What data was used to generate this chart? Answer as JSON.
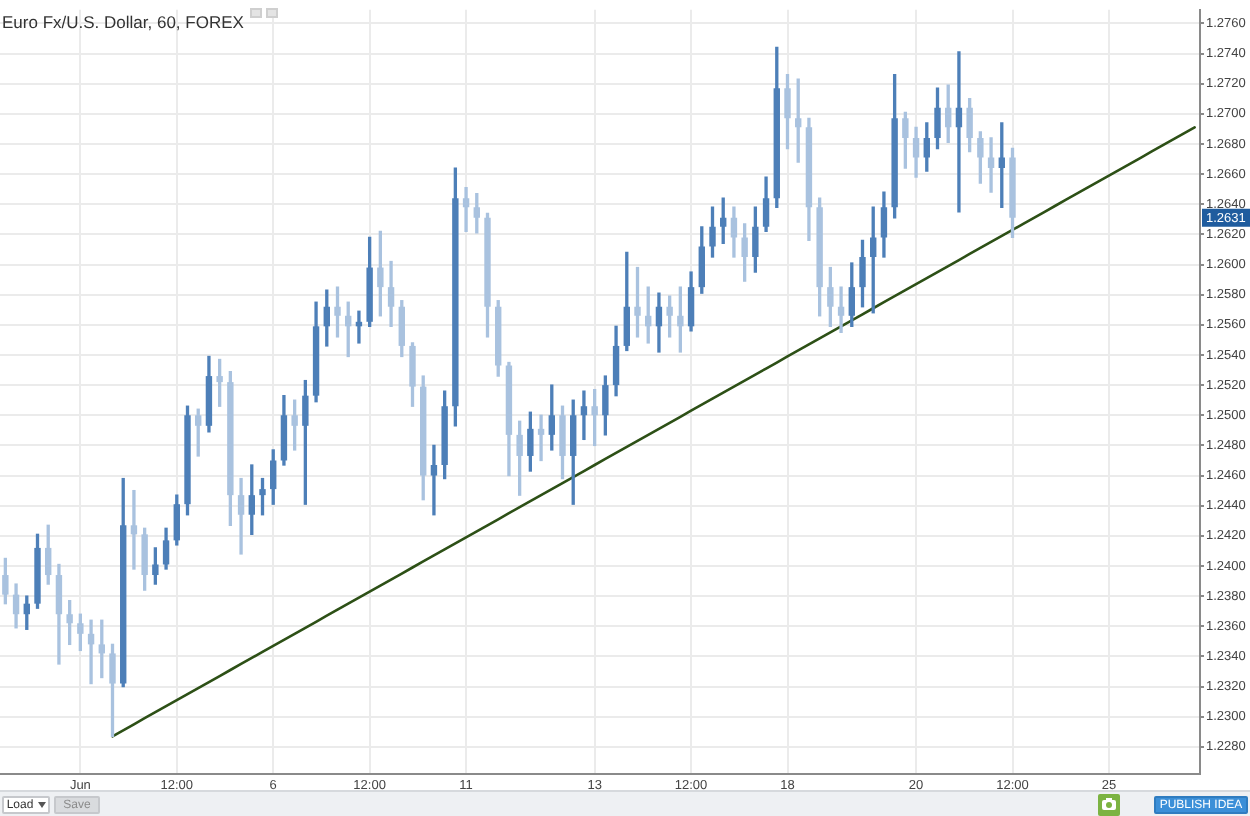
{
  "chart_data": {
    "type": "candlestick",
    "title": "Euro Fx/U.S. Dollar, 60, FOREX",
    "categories": [
      null,
      null,
      null,
      null,
      null,
      null,
      null,
      "Jun",
      null,
      null,
      null,
      null,
      null,
      null,
      null,
      null,
      "12:00",
      null,
      null,
      null,
      null,
      null,
      null,
      null,
      null,
      "6",
      null,
      null,
      null,
      null,
      null,
      null,
      null,
      null,
      "12:00",
      null,
      null,
      null,
      null,
      null,
      null,
      null,
      null,
      "11",
      null,
      null,
      null,
      null,
      null,
      null,
      null,
      null,
      null,
      null,
      null,
      "13",
      null,
      null,
      null,
      null,
      null,
      null,
      null,
      null,
      "12:00",
      null,
      null,
      null,
      null,
      null,
      null,
      null,
      null,
      "18",
      null,
      null,
      null,
      null,
      null,
      null,
      null,
      null,
      null,
      null,
      null,
      "20",
      null,
      null,
      null,
      null,
      null,
      null,
      null,
      null,
      "12:00",
      null,
      null,
      null,
      null,
      null,
      null,
      null,
      null,
      "25",
      null,
      null,
      null,
      null,
      null,
      null,
      null,
      null
    ],
    "ohlc": [
      [
        1.2394,
        1.2405,
        1.2375,
        1.2381
      ],
      [
        1.2381,
        1.2388,
        1.2359,
        1.2368
      ],
      [
        1.2368,
        1.238,
        1.2358,
        1.2375
      ],
      [
        1.2375,
        1.2421,
        1.2372,
        1.2412
      ],
      [
        1.2412,
        1.2427,
        1.2388,
        1.2394
      ],
      [
        1.2394,
        1.2401,
        1.2335,
        1.2368
      ],
      [
        1.2368,
        1.2377,
        1.2348,
        1.2362
      ],
      [
        1.2362,
        1.2368,
        1.2344,
        1.2355
      ],
      [
        1.2355,
        1.2364,
        1.2322,
        1.2348
      ],
      [
        1.2348,
        1.2364,
        1.2326,
        1.2342
      ],
      [
        1.2342,
        1.2348,
        1.2287,
        1.2322
      ],
      [
        1.2322,
        1.2458,
        1.232,
        1.2427
      ],
      [
        1.2427,
        1.245,
        1.2398,
        1.2421
      ],
      [
        1.2421,
        1.2425,
        1.2384,
        1.2394
      ],
      [
        1.2394,
        1.2412,
        1.2388,
        1.2401
      ],
      [
        1.2401,
        1.2425,
        1.2398,
        1.2417
      ],
      [
        1.2417,
        1.2447,
        1.2414,
        1.2441
      ],
      [
        1.2441,
        1.2506,
        1.2434,
        1.25
      ],
      [
        1.25,
        1.2504,
        1.2473,
        1.2493
      ],
      [
        1.2493,
        1.2539,
        1.2489,
        1.2526
      ],
      [
        1.2526,
        1.2537,
        1.2506,
        1.2522
      ],
      [
        1.2522,
        1.2529,
        1.2427,
        1.2447
      ],
      [
        1.2447,
        1.2458,
        1.2408,
        1.2434
      ],
      [
        1.2434,
        1.2467,
        1.2421,
        1.2447
      ],
      [
        1.2447,
        1.2458,
        1.2434,
        1.2451
      ],
      [
        1.2451,
        1.2477,
        1.2441,
        1.247
      ],
      [
        1.247,
        1.2513,
        1.2467,
        1.25
      ],
      [
        1.25,
        1.251,
        1.2477,
        1.2493
      ],
      [
        1.2493,
        1.2523,
        1.2441,
        1.2513
      ],
      [
        1.2513,
        1.2575,
        1.2509,
        1.2559
      ],
      [
        1.2559,
        1.2583,
        1.2546,
        1.2572
      ],
      [
        1.2572,
        1.2585,
        1.2552,
        1.2566
      ],
      [
        1.2566,
        1.2575,
        1.2539,
        1.2559
      ],
      [
        1.2559,
        1.2569,
        1.2548,
        1.2562
      ],
      [
        1.2562,
        1.2618,
        1.2559,
        1.2598
      ],
      [
        1.2598,
        1.2622,
        1.2566,
        1.2585
      ],
      [
        1.2585,
        1.2602,
        1.2559,
        1.2572
      ],
      [
        1.2572,
        1.2576,
        1.2539,
        1.2546
      ],
      [
        1.2546,
        1.2548,
        1.2506,
        1.2519
      ],
      [
        1.2519,
        1.2526,
        1.2444,
        1.246
      ],
      [
        1.246,
        1.248,
        1.2434,
        1.2467
      ],
      [
        1.2467,
        1.2516,
        1.2458,
        1.2506
      ],
      [
        1.2506,
        1.2664,
        1.2493,
        1.2644
      ],
      [
        1.2644,
        1.2651,
        1.2622,
        1.2638
      ],
      [
        1.2638,
        1.2647,
        1.2621,
        1.2631
      ],
      [
        1.2631,
        1.2634,
        1.2552,
        1.2572
      ],
      [
        1.2572,
        1.2576,
        1.2526,
        1.2533
      ],
      [
        1.2533,
        1.2535,
        1.246,
        1.2487
      ],
      [
        1.2487,
        1.2496,
        1.2447,
        1.2473
      ],
      [
        1.2473,
        1.2502,
        1.2463,
        1.2491
      ],
      [
        1.2491,
        1.25,
        1.247,
        1.2487
      ],
      [
        1.2487,
        1.252,
        1.2477,
        1.25
      ],
      [
        1.25,
        1.2506,
        1.2458,
        1.2473
      ],
      [
        1.2473,
        1.251,
        1.2441,
        1.25
      ],
      [
        1.25,
        1.2516,
        1.2484,
        1.2506
      ],
      [
        1.2506,
        1.2517,
        1.248,
        1.25
      ],
      [
        1.25,
        1.2526,
        1.2487,
        1.252
      ],
      [
        1.252,
        1.2559,
        1.2513,
        1.2546
      ],
      [
        1.2546,
        1.2608,
        1.2543,
        1.2572
      ],
      [
        1.2572,
        1.2598,
        1.2552,
        1.2566
      ],
      [
        1.2566,
        1.2585,
        1.2548,
        1.2559
      ],
      [
        1.2559,
        1.2581,
        1.2542,
        1.2572
      ],
      [
        1.2572,
        1.2579,
        1.2552,
        1.2566
      ],
      [
        1.2566,
        1.2585,
        1.2542,
        1.2559
      ],
      [
        1.2559,
        1.2595,
        1.2556,
        1.2585
      ],
      [
        1.2585,
        1.2625,
        1.2581,
        1.2612
      ],
      [
        1.2612,
        1.2638,
        1.2605,
        1.2625
      ],
      [
        1.2625,
        1.2644,
        1.2614,
        1.2631
      ],
      [
        1.2631,
        1.2638,
        1.2605,
        1.2618
      ],
      [
        1.2618,
        1.2627,
        1.2589,
        1.2605
      ],
      [
        1.2605,
        1.2638,
        1.2595,
        1.2625
      ],
      [
        1.2625,
        1.2658,
        1.2622,
        1.2644
      ],
      [
        1.2644,
        1.2744,
        1.2638,
        1.2717
      ],
      [
        1.2717,
        1.2726,
        1.2677,
        1.2697
      ],
      [
        1.2697,
        1.2723,
        1.2668,
        1.2691
      ],
      [
        1.2691,
        1.2697,
        1.2616,
        1.2638
      ],
      [
        1.2638,
        1.2644,
        1.2566,
        1.2585
      ],
      [
        1.2585,
        1.2598,
        1.2559,
        1.2572
      ],
      [
        1.2572,
        1.2585,
        1.2555,
        1.2566
      ],
      [
        1.2566,
        1.2601,
        1.2559,
        1.2585
      ],
      [
        1.2585,
        1.2616,
        1.2572,
        1.2605
      ],
      [
        1.2605,
        1.2638,
        1.2568,
        1.2618
      ],
      [
        1.2618,
        1.2648,
        1.2605,
        1.2638
      ],
      [
        1.2638,
        1.2726,
        1.2631,
        1.2697
      ],
      [
        1.2697,
        1.2701,
        1.2664,
        1.2684
      ],
      [
        1.2684,
        1.2691,
        1.2658,
        1.2671
      ],
      [
        1.2671,
        1.2694,
        1.2662,
        1.2684
      ],
      [
        1.2684,
        1.2717,
        1.2677,
        1.2704
      ],
      [
        1.2704,
        1.2719,
        1.2681,
        1.2691
      ],
      [
        1.2691,
        1.2741,
        1.2635,
        1.2704
      ],
      [
        1.2704,
        1.271,
        1.2675,
        1.2684
      ],
      [
        1.2684,
        1.2688,
        1.2654,
        1.2671
      ],
      [
        1.2671,
        1.2684,
        1.2648,
        1.2664
      ],
      [
        1.2664,
        1.2694,
        1.2638,
        1.2671
      ],
      [
        1.2671,
        1.2677,
        1.2618,
        1.2631
      ],
      null,
      null,
      null,
      null,
      null,
      null,
      null,
      null,
      null,
      null,
      null,
      null,
      null,
      null,
      null,
      null,
      null
    ],
    "colors": [
      "#a9c2df",
      "#a9c2df",
      "#4d7fb8",
      "#4d7fb8",
      "#a9c2df",
      "#a9c2df",
      "#a9c2df",
      "#a9c2df",
      "#a9c2df",
      "#a9c2df",
      "#a9c2df",
      "#4d7fb8",
      "#a9c2df",
      "#a9c2df",
      "#4d7fb8",
      "#4d7fb8",
      "#4d7fb8",
      "#4d7fb8",
      "#a9c2df",
      "#4d7fb8",
      "#a9c2df",
      "#a9c2df",
      "#a9c2df",
      "#4d7fb8",
      "#4d7fb8",
      "#4d7fb8",
      "#4d7fb8",
      "#a9c2df",
      "#4d7fb8",
      "#4d7fb8",
      "#4d7fb8",
      "#a9c2df",
      "#a9c2df",
      "#4d7fb8",
      "#4d7fb8",
      "#a9c2df",
      "#a9c2df",
      "#a9c2df",
      "#a9c2df",
      "#a9c2df",
      "#4d7fb8",
      "#4d7fb8",
      "#4d7fb8",
      "#a9c2df",
      "#a9c2df",
      "#a9c2df",
      "#a9c2df",
      "#a9c2df",
      "#a9c2df",
      "#4d7fb8",
      "#a9c2df",
      "#4d7fb8",
      "#a9c2df",
      "#4d7fb8",
      "#4d7fb8",
      "#a9c2df",
      "#4d7fb8",
      "#4d7fb8",
      "#4d7fb8",
      "#a9c2df",
      "#a9c2df",
      "#4d7fb8",
      "#a9c2df",
      "#a9c2df",
      "#4d7fb8",
      "#4d7fb8",
      "#4d7fb8",
      "#4d7fb8",
      "#a9c2df",
      "#a9c2df",
      "#4d7fb8",
      "#4d7fb8",
      "#4d7fb8",
      "#a9c2df",
      "#a9c2df",
      "#a9c2df",
      "#a9c2df",
      "#a9c2df",
      "#a9c2df",
      "#4d7fb8",
      "#4d7fb8",
      "#4d7fb8",
      "#4d7fb8",
      "#4d7fb8",
      "#a9c2df",
      "#a9c2df",
      "#4d7fb8",
      "#4d7fb8",
      "#a9c2df",
      "#4d7fb8",
      "#a9c2df",
      "#a9c2df",
      "#a9c2df",
      "#4d7fb8",
      "#a9c2df",
      null,
      null,
      null,
      null,
      null,
      null,
      null,
      null,
      null,
      null,
      null,
      null,
      null,
      null,
      null,
      null,
      null
    ],
    "series": [
      {
        "type": "line",
        "color": "#2d5016",
        "values": [
          null,
          null,
          null,
          null,
          null,
          null,
          null,
          null,
          null,
          null,
          1.2287,
          1.2291,
          1.2295,
          1.2299,
          1.2303,
          1.2307,
          1.2311,
          1.2315,
          1.2319,
          1.2323,
          1.2327,
          1.2331,
          1.2335,
          1.2339,
          1.2343,
          1.2347,
          1.2351,
          1.2355,
          1.2359,
          1.2363,
          1.2367,
          1.2371,
          1.2375,
          1.2379,
          1.2383,
          1.2387,
          1.2391,
          1.2395,
          1.2399,
          1.2403,
          1.2407,
          1.2411,
          1.2415,
          1.2419,
          1.2423,
          1.2427,
          1.2431,
          1.2435,
          1.2439,
          1.2443,
          1.2447,
          1.2451,
          1.2455,
          1.2459,
          1.2463,
          1.2467,
          1.2471,
          1.2475,
          1.2479,
          1.2483,
          1.2487,
          1.2491,
          1.2495,
          1.2499,
          1.2503,
          1.2507,
          1.2511,
          1.2515,
          1.2519,
          1.2523,
          1.2527,
          1.2531,
          1.2535,
          1.2539,
          1.2543,
          1.2547,
          1.2551,
          1.2555,
          1.2559,
          1.2563,
          1.2567,
          1.2571,
          1.2575,
          1.2579,
          1.2583,
          1.2587,
          1.2591,
          1.2595,
          1.2599,
          1.2603,
          1.2607,
          1.2611,
          1.2615,
          1.2619,
          1.2623,
          1.2627,
          1.2631,
          1.2635,
          1.2639,
          1.2643,
          1.2647,
          1.2651,
          1.2655,
          1.2659,
          1.2663,
          1.2667,
          1.2671,
          1.2675,
          1.2679,
          1.2683,
          1.2687,
          1.2691
        ]
      }
    ],
    "ylim": [
      1.2262,
      1.2769
    ],
    "yticks": [
      {
        "value": 1.228,
        "label": "1.2280"
      },
      {
        "value": 1.23,
        "label": "1.2300"
      },
      {
        "value": 1.232,
        "label": "1.2320"
      },
      {
        "value": 1.234,
        "label": "1.2340"
      },
      {
        "value": 1.236,
        "label": "1.2360"
      },
      {
        "value": 1.238,
        "label": "1.2380"
      },
      {
        "value": 1.24,
        "label": "1.2400"
      },
      {
        "value": 1.242,
        "label": "1.2420"
      },
      {
        "value": 1.244,
        "label": "1.2440"
      },
      {
        "value": 1.246,
        "label": "1.2460"
      },
      {
        "value": 1.248,
        "label": "1.2480"
      },
      {
        "value": 1.25,
        "label": "1.2500"
      },
      {
        "value": 1.252,
        "label": "1.2520"
      },
      {
        "value": 1.254,
        "label": "1.2540"
      },
      {
        "value": 1.256,
        "label": "1.2560"
      },
      {
        "value": 1.258,
        "label": "1.2580"
      },
      {
        "value": 1.26,
        "label": "1.2600"
      },
      {
        "value": 1.262,
        "label": "1.2620"
      },
      {
        "value": 1.264,
        "label": "1.2640"
      },
      {
        "value": 1.266,
        "label": "1.2660"
      },
      {
        "value": 1.268,
        "label": "1.2680"
      },
      {
        "value": 1.27,
        "label": "1.2700"
      },
      {
        "value": 1.272,
        "label": "1.2720"
      },
      {
        "value": 1.274,
        "label": "1.2740"
      },
      {
        "value": 1.276,
        "label": "1.2760"
      }
    ],
    "grid": true,
    "annotations": [
      "Load",
      "Save",
      "PUBLISH IDEA",
      {
        "text": "1.2631",
        "y": 1.2631
      }
    ]
  }
}
